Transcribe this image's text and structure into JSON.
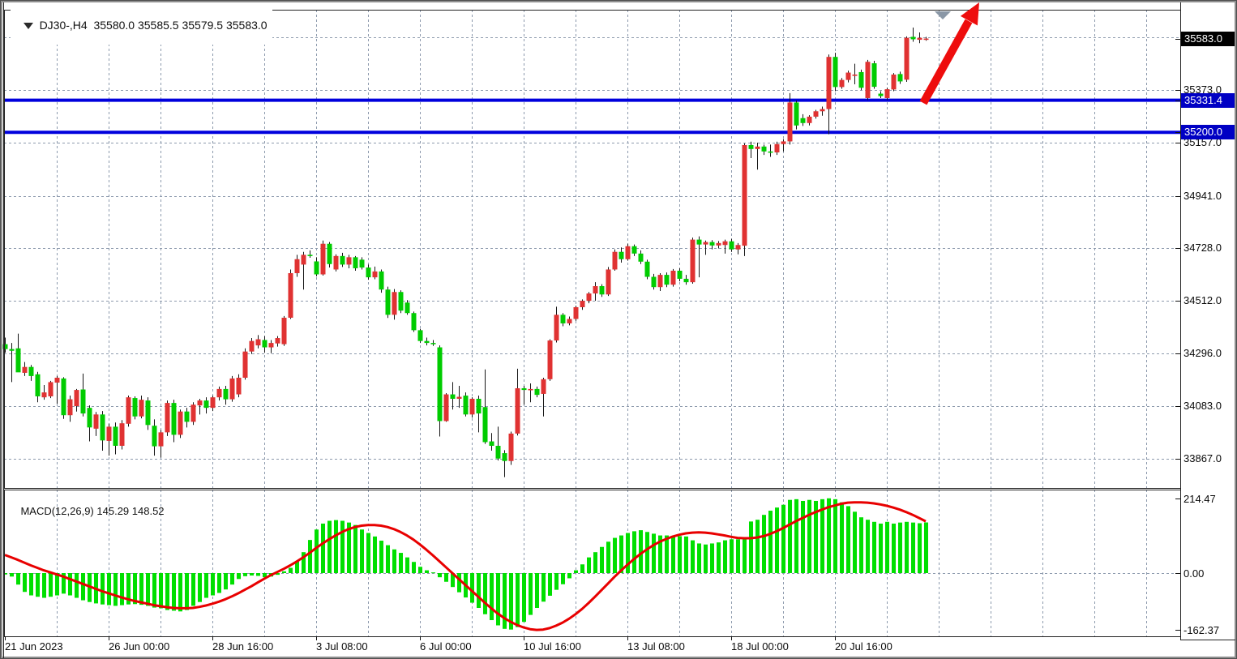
{
  "chart_header": {
    "symbol_period": "DJ30-,H4",
    "ohlc_values": "35580.0 35585.5 35579.5 35583.0"
  },
  "colors": {
    "bull_candle": "#e03232",
    "bear_candle": "#00cc00",
    "wick": "#161616",
    "grid": "#8d9aad",
    "panel_border": "#222222",
    "macd_hist": "#00df00",
    "macd_signal": "#e80000",
    "hline_blue": "#0000dd",
    "badge_current_bg": "#000000",
    "badge_line_bg": "#0000c4",
    "arrow_red": "#ee0d0d",
    "shift_marker_gray": "#8a97a6"
  },
  "price_scale": {
    "current_price_badge": "35583.0",
    "labels": [
      {
        "text": "35373.0",
        "value": 35373.0
      },
      {
        "text": "35157.0",
        "value": 35157.0
      },
      {
        "text": "34941.0",
        "value": 34941.0
      },
      {
        "text": "34728.0",
        "value": 34728.0
      },
      {
        "text": "34512.0",
        "value": 34512.0
      },
      {
        "text": "34296.0",
        "value": 34296.0
      },
      {
        "text": "34083.0",
        "value": 34083.0
      },
      {
        "text": "33867.0",
        "value": 33867.0
      }
    ],
    "line_badges": [
      {
        "text": "35331.4",
        "value": 35331.4
      },
      {
        "text": "35200.0",
        "value": 35200.0
      }
    ],
    "unlabeled_gridline_values": [
      35589.0
    ]
  },
  "time_scale": {
    "labels": [
      {
        "text": "21 Jun 2023",
        "index": 0
      },
      {
        "text": "26 Jun 00:00",
        "index": 16
      },
      {
        "text": "28 Jun 16:00",
        "index": 32
      },
      {
        "text": "3 Jul 08:00",
        "index": 48
      },
      {
        "text": "6 Jul 00:00",
        "index": 64
      },
      {
        "text": "10 Jul 16:00",
        "index": 80
      },
      {
        "text": "13 Jul 08:00",
        "index": 96
      },
      {
        "text": "18 Jul 00:00",
        "index": 112
      },
      {
        "text": "20 Jul 16:00",
        "index": 128
      }
    ]
  },
  "macd_panel": {
    "indicator_label": "MACD(12,26,9)",
    "indicator_values": "145.29 148.52",
    "scale_labels": [
      {
        "text": "214.47",
        "value": 214.47
      },
      {
        "text": "0.00",
        "value": 0
      },
      {
        "text": "-162.37",
        "value": -162.37
      }
    ]
  },
  "annotations": {
    "trend_arrow": {
      "type": "arrow",
      "direction": "up-right",
      "color": "#ee0d0d"
    },
    "shift_marker": {
      "type": "triangle-down"
    }
  },
  "chart_data": {
    "type": "candlestick_with_macd",
    "symbol": "DJ30-",
    "timeframe": "H4",
    "color_convention": "red = bullish (close>=open), green = bearish",
    "current_price": 35583.0,
    "support_resistance_lines": [
      35331.4,
      35200.0
    ],
    "price_gridlines": [
      35589,
      35373,
      35157,
      34941,
      34728,
      34512,
      34296,
      34083,
      33867
    ],
    "macd_axis": {
      "max": 214.47,
      "zero": 0.0,
      "min": -162.37
    },
    "candles_ohlc": [
      [
        34335,
        34362,
        34300,
        34315
      ],
      [
        34315,
        34340,
        34180,
        34308
      ],
      [
        34318,
        34378,
        34240,
        34220
      ],
      [
        34218,
        34262,
        34205,
        34242
      ],
      [
        34242,
        34250,
        34185,
        34205
      ],
      [
        34212,
        34222,
        34098,
        34122
      ],
      [
        34118,
        34168,
        34108,
        34138
      ],
      [
        34122,
        34185,
        34115,
        34180
      ],
      [
        34178,
        34205,
        34092,
        34198
      ],
      [
        34195,
        34200,
        34030,
        34045
      ],
      [
        34045,
        34125,
        34018,
        34110
      ],
      [
        34082,
        34152,
        34060,
        34148
      ],
      [
        34150,
        34215,
        34040,
        34052
      ],
      [
        34075,
        34085,
        33938,
        33995
      ],
      [
        33990,
        34058,
        33960,
        34048
      ],
      [
        34048,
        34062,
        33900,
        33942
      ],
      [
        33940,
        34010,
        33880,
        33998
      ],
      [
        33998,
        34015,
        33885,
        33920
      ],
      [
        33920,
        34025,
        33905,
        34012
      ],
      [
        34010,
        34125,
        33998,
        34118
      ],
      [
        34115,
        34122,
        34028,
        34040
      ],
      [
        34040,
        34125,
        34032,
        34108
      ],
      [
        34105,
        34118,
        33985,
        34005
      ],
      [
        34002,
        34028,
        33880,
        33918
      ],
      [
        33918,
        33985,
        33872,
        33975
      ],
      [
        33975,
        34105,
        33960,
        34095
      ],
      [
        34095,
        34108,
        33935,
        33965
      ],
      [
        33965,
        34068,
        33952,
        34060
      ],
      [
        34060,
        34075,
        33995,
        34018
      ],
      [
        34018,
        34098,
        34005,
        34088
      ],
      [
        34085,
        34112,
        34048,
        34105
      ],
      [
        34105,
        34118,
        34052,
        34075
      ],
      [
        34075,
        34125,
        34062,
        34118
      ],
      [
        34118,
        34162,
        34105,
        34152
      ],
      [
        34152,
        34165,
        34088,
        34110
      ],
      [
        34110,
        34205,
        34100,
        34195
      ],
      [
        34130,
        34212,
        34118,
        34198
      ],
      [
        34198,
        34318,
        34190,
        34305
      ],
      [
        34305,
        34360,
        34295,
        34348
      ],
      [
        34330,
        34372,
        34318,
        34355
      ],
      [
        34352,
        34368,
        34300,
        34322
      ],
      [
        34322,
        34352,
        34298,
        34340
      ],
      [
        34338,
        34368,
        34325,
        34360
      ],
      [
        34335,
        34450,
        34328,
        34443
      ],
      [
        34443,
        34640,
        34438,
        34625
      ],
      [
        34625,
        34700,
        34610,
        34682
      ],
      [
        34660,
        34712,
        34558,
        34700
      ],
      [
        34700,
        34718,
        34688,
        34695
      ],
      [
        34673,
        34690,
        34612,
        34620
      ],
      [
        34620,
        34758,
        34615,
        34745
      ],
      [
        34745,
        34752,
        34648,
        34662
      ],
      [
        34640,
        34702,
        34632,
        34695
      ],
      [
        34695,
        34708,
        34650,
        34660
      ],
      [
        34660,
        34700,
        34645,
        34690
      ],
      [
        34690,
        34695,
        34635,
        34645
      ],
      [
        34680,
        34690,
        34640,
        34648
      ],
      [
        34648,
        34660,
        34598,
        34608
      ],
      [
        34608,
        34652,
        34600,
        34632
      ],
      [
        34632,
        34640,
        34545,
        34558
      ],
      [
        34558,
        34570,
        34442,
        34455
      ],
      [
        34455,
        34560,
        34435,
        34548
      ],
      [
        34548,
        34555,
        34462,
        34472
      ],
      [
        34505,
        34515,
        34455,
        34462
      ],
      [
        34462,
        34468,
        34385,
        34392
      ],
      [
        34392,
        34398,
        34340,
        34348
      ],
      [
        34348,
        34362,
        34330,
        34340
      ],
      [
        34340,
        34352,
        34328,
        34335
      ],
      [
        34322,
        34330,
        33958,
        34021
      ],
      [
        34021,
        34135,
        34018,
        34130
      ],
      [
        34130,
        34180,
        34068,
        34112
      ],
      [
        34112,
        34165,
        34075,
        34120
      ],
      [
        34125,
        34138,
        34040,
        34048
      ],
      [
        34048,
        34118,
        34035,
        34112
      ],
      [
        34112,
        34125,
        33975,
        34052
      ],
      [
        34078,
        34232,
        33928,
        33935
      ],
      [
        33938,
        33972,
        33900,
        33920
      ],
      [
        33920,
        33998,
        33860,
        33868
      ],
      [
        33890,
        33902,
        33792,
        33858
      ],
      [
        33858,
        33978,
        33842,
        33970
      ],
      [
        33970,
        34235,
        33962,
        34155
      ],
      [
        34155,
        34165,
        34088,
        34148
      ],
      [
        34148,
        34175,
        34098,
        34152
      ],
      [
        34152,
        34162,
        34118,
        34128
      ],
      [
        34132,
        34198,
        34040,
        34192
      ],
      [
        34192,
        34355,
        34185,
        34350
      ],
      [
        34350,
        34488,
        34342,
        34455
      ],
      [
        34455,
        34462,
        34408,
        34420
      ],
      [
        34420,
        34448,
        34412,
        34438
      ],
      [
        34438,
        34492,
        34430,
        34486
      ],
      [
        34486,
        34518,
        34475,
        34512
      ],
      [
        34512,
        34548,
        34502,
        34542
      ],
      [
        34542,
        34588,
        34512,
        34572
      ],
      [
        34572,
        34580,
        34528,
        34538
      ],
      [
        34538,
        34650,
        34532,
        34640
      ],
      [
        34640,
        34722,
        34635,
        34712
      ],
      [
        34712,
        34730,
        34668,
        34682
      ],
      [
        34682,
        34745,
        34676,
        34735
      ],
      [
        34735,
        34742,
        34695,
        34705
      ],
      [
        34705,
        34718,
        34662,
        34672
      ],
      [
        34672,
        34680,
        34600,
        34610
      ],
      [
        34610,
        34622,
        34558,
        34568
      ],
      [
        34568,
        34625,
        34552,
        34618
      ],
      [
        34618,
        34628,
        34568,
        34578
      ],
      [
        34578,
        34642,
        34570,
        34635
      ],
      [
        34635,
        34645,
        34592,
        34602
      ],
      [
        34602,
        34618,
        34578,
        34588
      ],
      [
        34588,
        34770,
        34582,
        34762
      ],
      [
        34762,
        34775,
        34608,
        34742
      ],
      [
        34742,
        34758,
        34700,
        34752
      ],
      [
        34752,
        34760,
        34722,
        34738
      ],
      [
        34738,
        34756,
        34726,
        34748
      ],
      [
        34740,
        34762,
        34705,
        34755
      ],
      [
        34755,
        34765,
        34712,
        34722
      ],
      [
        34722,
        34748,
        34702,
        34740
      ],
      [
        34737,
        35155,
        34695,
        35148
      ],
      [
        35148,
        35162,
        35095,
        35132
      ],
      [
        35132,
        35158,
        35048,
        35142
      ],
      [
        35142,
        35150,
        35108,
        35122
      ],
      [
        35122,
        35150,
        35100,
        35118
      ],
      [
        35118,
        35162,
        35108,
        35152
      ],
      [
        35152,
        35172,
        35122,
        35163
      ],
      [
        35163,
        35360,
        35150,
        35322
      ],
      [
        35322,
        35330,
        35212,
        35228
      ],
      [
        35258,
        35274,
        35226,
        35238
      ],
      [
        35238,
        35270,
        35228,
        35264
      ],
      [
        35264,
        35292,
        35256,
        35286
      ],
      [
        35286,
        35305,
        35268,
        35295
      ],
      [
        35295,
        35518,
        35192,
        35508
      ],
      [
        35508,
        35525,
        35368,
        35385
      ],
      [
        35385,
        35422,
        35378,
        35414
      ],
      [
        35414,
        35452,
        35404,
        35444
      ],
      [
        35432,
        35480,
        35396,
        35436
      ],
      [
        35446,
        35456,
        35372,
        35382
      ],
      [
        35340,
        35496,
        35332,
        35488
      ],
      [
        35482,
        35492,
        35378,
        35386
      ],
      [
        35358,
        35368,
        35340,
        35348
      ],
      [
        35340,
        35382,
        35332,
        35376
      ],
      [
        35375,
        35442,
        35368,
        35436
      ],
      [
        35438,
        35448,
        35398,
        35408
      ],
      [
        35415,
        35592,
        35406,
        35586
      ],
      [
        35590,
        35628,
        35570,
        35580
      ],
      [
        35578,
        35608,
        35564,
        35586
      ],
      [
        35580,
        35590,
        35574,
        35583
      ]
    ],
    "macd_histogram": [
      -4,
      -10,
      -33,
      -54,
      -64,
      -68,
      -71,
      -68,
      -64,
      -59,
      -64,
      -71,
      -78,
      -83,
      -87,
      -90,
      -92,
      -94,
      -92,
      -90,
      -89,
      -91,
      -94,
      -99,
      -101,
      -106,
      -108,
      -110,
      -106,
      -94,
      -83,
      -71,
      -64,
      -57,
      -47,
      -33,
      -17,
      -9,
      -7,
      -8,
      -12,
      -10,
      -5,
      5,
      15,
      35,
      60,
      95,
      125,
      142,
      150,
      152,
      150,
      145,
      138,
      125,
      115,
      105,
      93,
      80,
      68,
      58,
      45,
      32,
      18,
      8,
      2,
      -12,
      -25,
      -40,
      -55,
      -70,
      -85,
      -100,
      -118,
      -135,
      -150,
      -160,
      -162,
      -155,
      -140,
      -120,
      -100,
      -82,
      -65,
      -48,
      -32,
      -15,
      8,
      25,
      45,
      60,
      75,
      90,
      101,
      108,
      115,
      120,
      123,
      118,
      113,
      108,
      108,
      106,
      106,
      105,
      94,
      85,
      82,
      85,
      88,
      94,
      97,
      97,
      101,
      148,
      153,
      167,
      179,
      188,
      196,
      210,
      212,
      207,
      210,
      207,
      212,
      214.47,
      212,
      203,
      192,
      176,
      160,
      153,
      147,
      142,
      147,
      142,
      145,
      147,
      145,
      143,
      145.29
    ],
    "macd_signal": [
      52,
      45,
      38,
      30,
      22,
      15,
      8,
      2,
      -4,
      -10,
      -17,
      -24,
      -31,
      -38,
      -45,
      -52,
      -58,
      -64,
      -70,
      -75,
      -80,
      -84,
      -88,
      -92,
      -95,
      -98,
      -100,
      -101,
      -101,
      -100,
      -97,
      -93,
      -88,
      -82,
      -75,
      -67,
      -58,
      -48,
      -38,
      -27,
      -16,
      -6,
      3,
      12,
      22,
      33,
      45,
      58,
      72,
      85,
      97,
      108,
      118,
      126,
      132,
      136,
      138,
      138,
      136,
      132,
      126,
      118,
      108,
      96,
      82,
      67,
      51,
      34,
      17,
      0,
      -17,
      -34,
      -51,
      -68,
      -85,
      -101,
      -116,
      -129,
      -140,
      -149,
      -156,
      -161,
      -163,
      -162,
      -158,
      -151,
      -142,
      -131,
      -118,
      -103,
      -86,
      -68,
      -49,
      -30,
      -11,
      7,
      24,
      40,
      55,
      68,
      80,
      90,
      98,
      105,
      110,
      114,
      116,
      117,
      116,
      114,
      111,
      108,
      104,
      101,
      100,
      100,
      102,
      106,
      112,
      120,
      129,
      139,
      149,
      158,
      167,
      175,
      182,
      189,
      194,
      199,
      202,
      203,
      203,
      202,
      200,
      197,
      193,
      188,
      182,
      175,
      167,
      158,
      148.52
    ]
  }
}
